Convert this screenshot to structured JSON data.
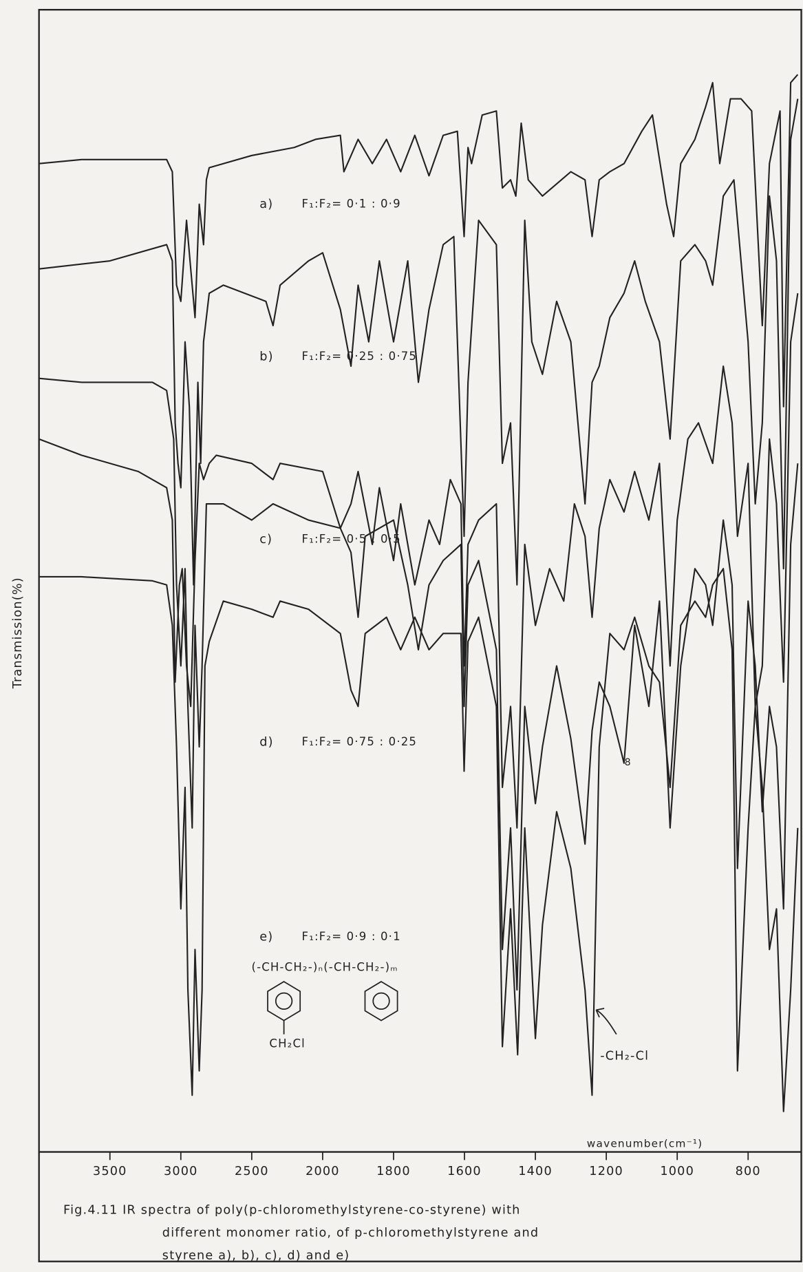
{
  "chart_data": {
    "type": "line",
    "ylabel": "Transmission(%)",
    "xlabel": "wavenumber(cm⁻¹)",
    "xlim": [
      4000,
      650
    ],
    "xticks": [
      3500,
      3000,
      2500,
      2000,
      1800,
      1600,
      1400,
      1200,
      1000,
      800
    ],
    "ylim": [
      0,
      141
    ],
    "color": "#222222",
    "series": [
      {
        "name": "a)",
        "label": "F₁:F₂= 0·1 : 0·9",
        "x": [
          4000,
          3700,
          3100,
          3060,
          3030,
          3000,
          2960,
          2930,
          2900,
          2870,
          2840,
          2820,
          2800,
          2500,
          2200,
          2050,
          1950,
          1940,
          1900,
          1860,
          1820,
          1780,
          1740,
          1700,
          1660,
          1620,
          1601,
          1590,
          1580,
          1550,
          1510,
          1493,
          1470,
          1455,
          1440,
          1420,
          1380,
          1300,
          1260,
          1240,
          1220,
          1190,
          1150,
          1100,
          1070,
          1030,
          1010,
          990,
          950,
          920,
          900,
          880,
          850,
          820,
          790,
          760,
          740,
          710,
          700,
          680,
          660
        ],
        "values": [
          122,
          122.5,
          122.5,
          121,
          107,
          105,
          115,
          109,
          103,
          117,
          112,
          120,
          121.5,
          123,
          124,
          125,
          125.5,
          121,
          125,
          122,
          125,
          121,
          125.5,
          120.5,
          125.5,
          126,
          113,
          124,
          122,
          128,
          128.5,
          119,
          120,
          118,
          127,
          120,
          118,
          121,
          120,
          113,
          120,
          121,
          122,
          126,
          128,
          117,
          113,
          122,
          125,
          129,
          132,
          122,
          130,
          130,
          128.5,
          102,
          122,
          128.5,
          92,
          132,
          133
        ]
      },
      {
        "name": "b)",
        "label": "F₁:F₂= 0·25 : 0·75",
        "x": [
          4000,
          3500,
          3100,
          3060,
          3040,
          3020,
          3000,
          2970,
          2940,
          2910,
          2880,
          2860,
          2840,
          2800,
          2700,
          2400,
          2350,
          2300,
          2100,
          2000,
          1950,
          1920,
          1900,
          1870,
          1840,
          1800,
          1760,
          1730,
          1700,
          1660,
          1630,
          1601,
          1590,
          1560,
          1510,
          1493,
          1470,
          1452,
          1430,
          1410,
          1380,
          1340,
          1300,
          1260,
          1240,
          1220,
          1190,
          1150,
          1120,
          1090,
          1050,
          1020,
          990,
          950,
          920,
          900,
          870,
          840,
          800,
          780,
          760,
          740,
          720,
          700,
          680,
          660
        ],
        "values": [
          109,
          110,
          112,
          110,
          90,
          85,
          82,
          100,
          92,
          70,
          95,
          85,
          100,
          106,
          107,
          105,
          102,
          107,
          110,
          111,
          104,
          97,
          107,
          100,
          110,
          100,
          110,
          95,
          104,
          112,
          113,
          76,
          95,
          115,
          112,
          85,
          90,
          70,
          115,
          100,
          96,
          105,
          100,
          80,
          95,
          97,
          103,
          106,
          110,
          105,
          100,
          88,
          110,
          112,
          110,
          107,
          118,
          120,
          100,
          80,
          90,
          118,
          110,
          72,
          125,
          130
        ]
      },
      {
        "name": "c)",
        "label": "F₁:F₂= 0·5 : 0·5",
        "x": [
          4000,
          3700,
          3300,
          3100,
          3060,
          3040,
          3010,
          2990,
          2960,
          2930,
          2900,
          2870,
          2840,
          2800,
          2750,
          2500,
          2350,
          2300,
          2000,
          1950,
          1920,
          1900,
          1860,
          1840,
          1800,
          1780,
          1740,
          1700,
          1670,
          1640,
          1610,
          1601,
          1590,
          1560,
          1510,
          1493,
          1470,
          1452,
          1430,
          1400,
          1360,
          1320,
          1290,
          1260,
          1240,
          1220,
          1190,
          1150,
          1120,
          1080,
          1050,
          1020,
          1000,
          970,
          940,
          900,
          870,
          845,
          830,
          800,
          780,
          760,
          740,
          720,
          700,
          680,
          660
        ],
        "values": [
          88,
          86,
          84,
          82,
          78,
          58,
          70,
          72,
          60,
          55,
          73,
          85,
          83,
          85,
          86,
          85,
          83,
          85,
          84,
          77,
          80,
          84,
          75,
          82,
          73,
          80,
          70,
          78,
          75,
          83,
          80,
          60,
          75,
          78,
          80,
          45,
          55,
          40,
          75,
          65,
          72,
          68,
          80,
          76,
          66,
          77,
          83,
          79,
          84,
          78,
          85,
          60,
          78,
          88,
          90,
          85,
          97,
          90,
          76,
          85,
          55,
          60,
          88,
          80,
          58,
          100,
          106
        ]
      },
      {
        "name": "d)",
        "label": "F₁:F₂= 0·75 : 0·25",
        "x": [
          4000,
          3700,
          3200,
          3100,
          3050,
          3030,
          3000,
          2970,
          2950,
          2920,
          2900,
          2870,
          2850,
          2820,
          2700,
          2500,
          2350,
          2100,
          1950,
          1920,
          1900,
          1880,
          1800,
          1760,
          1730,
          1700,
          1660,
          1610,
          1601,
          1590,
          1560,
          1510,
          1493,
          1470,
          1452,
          1430,
          1400,
          1380,
          1340,
          1300,
          1260,
          1240,
          1220,
          1190,
          1150,
          1120,
          1080,
          1050,
          1020,
          990,
          950,
          920,
          900,
          870,
          845,
          830,
          800,
          780,
          760,
          740,
          720,
          700,
          680,
          660
        ],
        "values": [
          95.5,
          95,
          95,
          94,
          88,
          70,
          60,
          72,
          55,
          40,
          65,
          50,
          60,
          80,
          80,
          78,
          80,
          78,
          77,
          74,
          66,
          76,
          78,
          70,
          62,
          70,
          73,
          75,
          55,
          70,
          73,
          62,
          25,
          40,
          20,
          55,
          43,
          50,
          60,
          51,
          38,
          52,
          58,
          55,
          48,
          65,
          55,
          68,
          40,
          60,
          72,
          70,
          65,
          78,
          70,
          35,
          68,
          60,
          42,
          55,
          50,
          30,
          75,
          85
        ]
      },
      {
        "name": "e)",
        "label": "F₁:F₂= 0·9 : 0·1",
        "x": [
          4000,
          3700,
          3200,
          3100,
          3060,
          3030,
          3000,
          2970,
          2950,
          2920,
          2900,
          2870,
          2850,
          2830,
          2800,
          2700,
          2500,
          2350,
          2300,
          2100,
          1950,
          1920,
          1900,
          1880,
          1820,
          1780,
          1740,
          1700,
          1660,
          1610,
          1601,
          1590,
          1560,
          1510,
          1493,
          1470,
          1450,
          1430,
          1400,
          1380,
          1340,
          1300,
          1260,
          1240,
          1220,
          1190,
          1150,
          1120,
          1080,
          1050,
          1020,
          990,
          950,
          920,
          900,
          870,
          845,
          830,
          800,
          780,
          760,
          740,
          720,
          700,
          680,
          660
        ],
        "values": [
          71,
          71,
          70.5,
          70,
          65,
          50,
          30,
          45,
          20,
          7,
          25,
          10,
          20,
          60,
          63,
          68,
          67,
          66,
          68,
          67,
          64,
          57,
          55,
          64,
          66,
          62,
          66,
          62,
          64,
          64,
          47,
          63,
          66,
          55,
          13,
          30,
          12,
          40,
          14,
          28,
          42,
          35,
          20,
          7,
          50,
          64,
          62,
          66,
          60,
          58,
          45,
          65,
          68,
          66,
          70,
          72,
          62,
          10,
          40,
          55,
          45,
          25,
          30,
          5,
          20,
          40
        ]
      }
    ],
    "annotations": [
      "8",
      "-CH₂-Cl"
    ],
    "structure": {
      "chain": "(-CH-CH₂-)ₙ(-CH-CH₂-)ₘ",
      "substituent": "CH₂Cl"
    },
    "caption": [
      "Fig.4.11 IR  spectra  of  poly(p-chloromethylstyrene-co-styrene)  with",
      "different  monomer  ratio,  of  p-chloromethylstyrene  and",
      "styrene  a), b), c), d)  and  e)"
    ]
  }
}
